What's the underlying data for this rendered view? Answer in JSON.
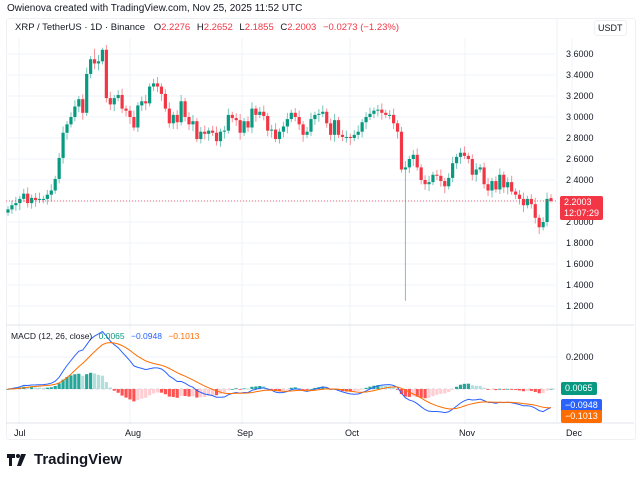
{
  "caption": "Owienova created with TradingView.com, Nov 25, 2025 11:52 UTC",
  "header": {
    "symbol": "XRP / TetherUS · 1D · Binance",
    "open_label": "O",
    "open": "2.2276",
    "high_label": "H",
    "high": "2.2652",
    "low_label": "L",
    "low": "2.1855",
    "close_label": "C",
    "close": "2.2003",
    "change": "−0.0273 (−1.23%)"
  },
  "price_axis": {
    "unit": "USDT",
    "ticks": [
      "3.6000",
      "3.4000",
      "3.2000",
      "3.0000",
      "2.8000",
      "2.6000",
      "2.4000",
      "2.2000",
      "2.0000",
      "1.8000",
      "1.6000",
      "1.4000",
      "1.2000"
    ],
    "last_price": "2.2003",
    "countdown": "12:07:29"
  },
  "macd": {
    "label": "MACD (12, 26, close)",
    "histogram": "0.0065",
    "macd": "−0.0948",
    "signal": "−0.1013",
    "axis_ticks": [
      "0.2000"
    ],
    "colors": {
      "macd": "#2962ff",
      "signal": "#ff6d00",
      "hist_up": "#089981",
      "hist_down": "#f23645"
    }
  },
  "time_axis": [
    "Jul",
    "Aug",
    "Sep",
    "Oct",
    "Nov",
    "Dec"
  ],
  "brand": "TradingView",
  "colors": {
    "up": "#089981",
    "down": "#f23645",
    "grid": "#f0f3fa"
  },
  "chart_data": {
    "type": "candlestick",
    "title": "XRP / TetherUS · 1D · Binance",
    "ylabel": "USDT",
    "ylim": [
      1.1,
      3.75
    ],
    "x_ticks": [
      "Jul",
      "Aug",
      "Sep",
      "Oct",
      "Nov",
      "Dec"
    ],
    "last": {
      "open": 2.2276,
      "high": 2.2652,
      "low": 2.1855,
      "close": 2.2003,
      "change": -0.0273,
      "change_pct": -1.23
    },
    "approx_closes": [
      2.12,
      2.16,
      2.18,
      2.22,
      2.27,
      2.18,
      2.23,
      2.21,
      2.22,
      2.22,
      2.26,
      2.3,
      2.41,
      2.61,
      2.85,
      2.93,
      3.0,
      3.1,
      3.17,
      3.04,
      3.41,
      3.55,
      3.51,
      3.53,
      3.64,
      3.18,
      3.12,
      3.18,
      3.21,
      3.08,
      3.06,
      3.0,
      2.9,
      3.11,
      3.15,
      3.13,
      3.29,
      3.32,
      3.29,
      3.22,
      3.08,
      2.94,
      3.02,
      2.95,
      3.15,
      3.0,
      2.93,
      2.96,
      2.79,
      2.86,
      2.84,
      2.87,
      2.85,
      2.77,
      2.86,
      2.87,
      3.02,
      2.99,
      2.97,
      2.85,
      2.96,
      2.9,
      3.08,
      3.02,
      3.05,
      3.01,
      2.87,
      2.88,
      2.79,
      2.86,
      2.91,
      2.98,
      3.04,
      3.0,
      2.93,
      2.83,
      2.86,
      2.98,
      3.02,
      3.03,
      3.05,
      2.94,
      2.83,
      2.97,
      2.83,
      2.81,
      2.81,
      2.8,
      2.83,
      2.86,
      2.95,
      3.0,
      3.03,
      3.06,
      3.07,
      3.04,
      3.02,
      3.02,
      2.94,
      2.86,
      2.5,
      2.52,
      2.6,
      2.64,
      2.52,
      2.4,
      2.36,
      2.38,
      2.45,
      2.44,
      2.39,
      2.34,
      2.42,
      2.56,
      2.62,
      2.66,
      2.63,
      2.6,
      2.45,
      2.5,
      2.52,
      2.36,
      2.3,
      2.39,
      2.31,
      2.45,
      2.33,
      2.38,
      2.29,
      2.26,
      2.22,
      2.16,
      2.22,
      2.17,
      2.04,
      1.95,
      2.0,
      2.22,
      2.2
    ],
    "macd_series": {
      "macd_last": -0.0948,
      "signal_last": -0.1013,
      "histogram_last": 0.0065,
      "axis_ticks": [
        0.2
      ]
    }
  }
}
